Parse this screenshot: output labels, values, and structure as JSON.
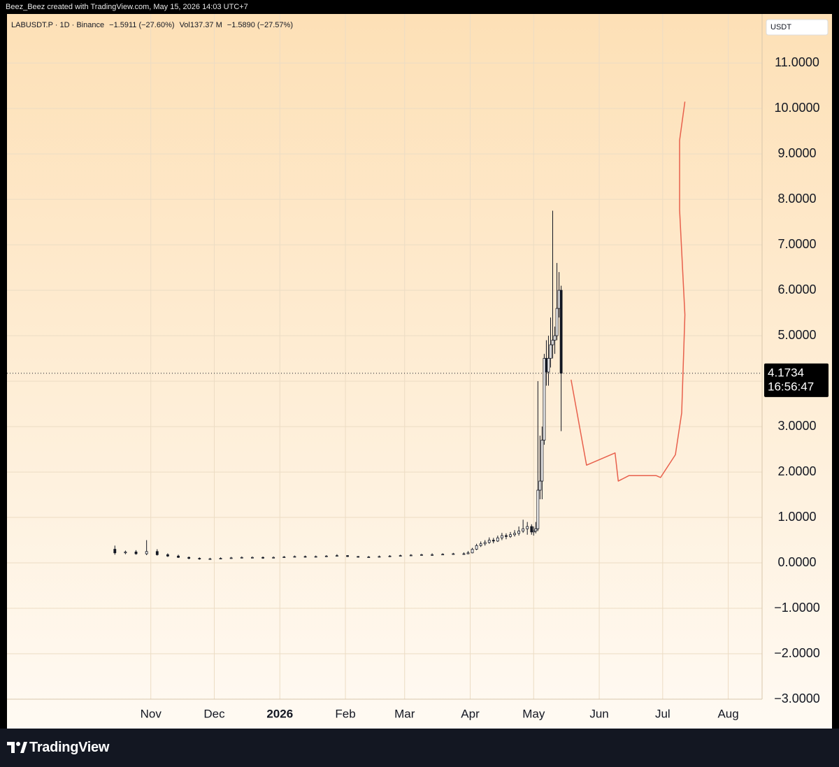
{
  "attribution": "Beez_Beez created with TradingView.com, May 15, 2026 14:03 UTC+7",
  "brand": "TradingView",
  "chart_data": {
    "type": "candlestick",
    "symbol": "LABUSDT.P · 1D · Binance",
    "change": "−1.5911 (−27.60%)",
    "volume": "Vol137.37 M",
    "volume_change": "−1.5890 (−27.57%)",
    "currency": "USDT",
    "grid": true,
    "color": "#131722",
    "xlim": [
      -68,
      289
    ],
    "xticks": [
      {
        "value": 0,
        "label": "Nov"
      },
      {
        "value": 30,
        "label": "Dec"
      },
      {
        "value": 61,
        "label": "2026",
        "bold": true
      },
      {
        "value": 92,
        "label": "Feb"
      },
      {
        "value": 120,
        "label": "Mar"
      },
      {
        "value": 151,
        "label": "Apr"
      },
      {
        "value": 181,
        "label": "May"
      },
      {
        "value": 212,
        "label": "Jun"
      },
      {
        "value": 242,
        "label": "Jul"
      },
      {
        "value": 273,
        "label": "Aug"
      }
    ],
    "ylim": [
      -3,
      12.08
    ],
    "yticks": [
      {
        "value": -3,
        "label": "−3.0000"
      },
      {
        "value": -2,
        "label": "−2.0000"
      },
      {
        "value": -1,
        "label": "−1.0000"
      },
      {
        "value": 0,
        "label": "0.0000"
      },
      {
        "value": 1,
        "label": "1.0000"
      },
      {
        "value": 2,
        "label": "2.0000"
      },
      {
        "value": 3,
        "label": "3.0000"
      },
      {
        "value": 4,
        "label": "4.0000"
      },
      {
        "value": 5,
        "label": "5.0000"
      },
      {
        "value": 6,
        "label": "6.0000"
      },
      {
        "value": 7,
        "label": "7.0000"
      },
      {
        "value": 8,
        "label": "8.0000"
      },
      {
        "value": 9,
        "label": "9.0000"
      },
      {
        "value": 10,
        "label": "10.0000"
      },
      {
        "value": 11,
        "label": "11.0000"
      }
    ],
    "last_price": {
      "value": 4.1734,
      "label": "4.1734"
    },
    "countdown": "16:56:47",
    "candles": [
      {
        "x": -17,
        "open": 0.3,
        "high": 0.38,
        "low": 0.18,
        "close": 0.22
      },
      {
        "x": -12,
        "open": 0.22,
        "high": 0.27,
        "low": 0.19,
        "close": 0.24
      },
      {
        "x": -7,
        "open": 0.24,
        "high": 0.28,
        "low": 0.18,
        "close": 0.2
      },
      {
        "x": -2,
        "open": 0.2,
        "high": 0.5,
        "low": 0.17,
        "close": 0.25
      },
      {
        "x": 3,
        "open": 0.25,
        "high": 0.3,
        "low": 0.16,
        "close": 0.18
      },
      {
        "x": 8,
        "open": 0.18,
        "high": 0.21,
        "low": 0.13,
        "close": 0.15
      },
      {
        "x": 13,
        "open": 0.15,
        "high": 0.18,
        "low": 0.11,
        "close": 0.12
      },
      {
        "x": 18,
        "open": 0.12,
        "high": 0.14,
        "low": 0.08,
        "close": 0.1
      },
      {
        "x": 23,
        "open": 0.1,
        "high": 0.12,
        "low": 0.07,
        "close": 0.09
      },
      {
        "x": 28,
        "open": 0.09,
        "high": 0.11,
        "low": 0.07,
        "close": 0.09
      },
      {
        "x": 33,
        "open": 0.09,
        "high": 0.12,
        "low": 0.08,
        "close": 0.1
      },
      {
        "x": 38,
        "open": 0.1,
        "high": 0.13,
        "low": 0.09,
        "close": 0.11
      },
      {
        "x": 43,
        "open": 0.11,
        "high": 0.14,
        "low": 0.1,
        "close": 0.12
      },
      {
        "x": 48,
        "open": 0.12,
        "high": 0.14,
        "low": 0.1,
        "close": 0.12
      },
      {
        "x": 53,
        "open": 0.12,
        "high": 0.14,
        "low": 0.09,
        "close": 0.11
      },
      {
        "x": 58,
        "open": 0.11,
        "high": 0.14,
        "low": 0.1,
        "close": 0.12
      },
      {
        "x": 63,
        "open": 0.12,
        "high": 0.15,
        "low": 0.11,
        "close": 0.13
      },
      {
        "x": 68,
        "open": 0.13,
        "high": 0.16,
        "low": 0.12,
        "close": 0.14
      },
      {
        "x": 73,
        "open": 0.14,
        "high": 0.16,
        "low": 0.12,
        "close": 0.13
      },
      {
        "x": 78,
        "open": 0.13,
        "high": 0.16,
        "low": 0.12,
        "close": 0.14
      },
      {
        "x": 83,
        "open": 0.14,
        "high": 0.17,
        "low": 0.13,
        "close": 0.15
      },
      {
        "x": 88,
        "open": 0.15,
        "high": 0.19,
        "low": 0.14,
        "close": 0.16
      },
      {
        "x": 93,
        "open": 0.16,
        "high": 0.17,
        "low": 0.13,
        "close": 0.14
      },
      {
        "x": 98,
        "open": 0.14,
        "high": 0.15,
        "low": 0.12,
        "close": 0.13
      },
      {
        "x": 103,
        "open": 0.13,
        "high": 0.15,
        "low": 0.12,
        "close": 0.13
      },
      {
        "x": 108,
        "open": 0.13,
        "high": 0.16,
        "low": 0.12,
        "close": 0.14
      },
      {
        "x": 113,
        "open": 0.14,
        "high": 0.17,
        "low": 0.13,
        "close": 0.15
      },
      {
        "x": 118,
        "open": 0.15,
        "high": 0.18,
        "low": 0.14,
        "close": 0.16
      },
      {
        "x": 123,
        "open": 0.16,
        "high": 0.19,
        "low": 0.15,
        "close": 0.17
      },
      {
        "x": 128,
        "open": 0.17,
        "high": 0.2,
        "low": 0.16,
        "close": 0.18
      },
      {
        "x": 133,
        "open": 0.18,
        "high": 0.21,
        "low": 0.16,
        "close": 0.18
      },
      {
        "x": 138,
        "open": 0.18,
        "high": 0.21,
        "low": 0.17,
        "close": 0.19
      },
      {
        "x": 143,
        "open": 0.19,
        "high": 0.22,
        "low": 0.18,
        "close": 0.2
      },
      {
        "x": 148,
        "open": 0.2,
        "high": 0.23,
        "low": 0.18,
        "close": 0.2
      },
      {
        "x": 150,
        "open": 0.2,
        "high": 0.26,
        "low": 0.19,
        "close": 0.22
      },
      {
        "x": 152,
        "open": 0.22,
        "high": 0.33,
        "low": 0.21,
        "close": 0.3
      },
      {
        "x": 154,
        "open": 0.3,
        "high": 0.42,
        "low": 0.28,
        "close": 0.38
      },
      {
        "x": 156,
        "open": 0.38,
        "high": 0.47,
        "low": 0.35,
        "close": 0.42
      },
      {
        "x": 158,
        "open": 0.42,
        "high": 0.5,
        "low": 0.38,
        "close": 0.45
      },
      {
        "x": 160,
        "open": 0.45,
        "high": 0.56,
        "low": 0.42,
        "close": 0.5
      },
      {
        "x": 162,
        "open": 0.5,
        "high": 0.55,
        "low": 0.43,
        "close": 0.48
      },
      {
        "x": 164,
        "open": 0.48,
        "high": 0.6,
        "low": 0.46,
        "close": 0.55
      },
      {
        "x": 166,
        "open": 0.55,
        "high": 0.66,
        "low": 0.5,
        "close": 0.6
      },
      {
        "x": 168,
        "open": 0.6,
        "high": 0.65,
        "low": 0.52,
        "close": 0.58
      },
      {
        "x": 170,
        "open": 0.58,
        "high": 0.68,
        "low": 0.55,
        "close": 0.62
      },
      {
        "x": 172,
        "open": 0.62,
        "high": 0.72,
        "low": 0.58,
        "close": 0.65
      },
      {
        "x": 174,
        "open": 0.65,
        "high": 0.8,
        "low": 0.6,
        "close": 0.7
      },
      {
        "x": 176,
        "open": 0.7,
        "high": 0.95,
        "low": 0.66,
        "close": 0.75
      },
      {
        "x": 178,
        "open": 0.75,
        "high": 0.9,
        "low": 0.62,
        "close": 0.8
      },
      {
        "x": 180,
        "open": 0.8,
        "high": 0.85,
        "low": 0.62,
        "close": 0.68
      },
      {
        "x": 181,
        "open": 0.68,
        "high": 0.8,
        "low": 0.6,
        "close": 0.7
      },
      {
        "x": 182,
        "open": 0.7,
        "high": 0.9,
        "low": 0.65,
        "close": 0.75
      },
      {
        "x": 183,
        "open": 0.75,
        "high": 4.0,
        "low": 0.7,
        "close": 1.6
      },
      {
        "x": 184,
        "open": 1.6,
        "high": 2.8,
        "low": 1.4,
        "close": 1.8
      },
      {
        "x": 185,
        "open": 1.8,
        "high": 3.0,
        "low": 1.4,
        "close": 2.7
      },
      {
        "x": 186,
        "open": 2.7,
        "high": 4.6,
        "low": 2.6,
        "close": 4.5
      },
      {
        "x": 187,
        "open": 4.5,
        "high": 4.9,
        "low": 3.9,
        "close": 4.2
      },
      {
        "x": 188,
        "open": 4.2,
        "high": 5.0,
        "low": 3.9,
        "close": 4.5
      },
      {
        "x": 189,
        "open": 4.5,
        "high": 5.4,
        "low": 4.3,
        "close": 4.8
      },
      {
        "x": 190,
        "open": 4.8,
        "high": 7.75,
        "low": 4.5,
        "close": 4.9
      },
      {
        "x": 191,
        "open": 4.9,
        "high": 5.2,
        "low": 4.6,
        "close": 5.0
      },
      {
        "x": 192,
        "open": 5.0,
        "high": 6.6,
        "low": 4.9,
        "close": 5.6
      },
      {
        "x": 193,
        "open": 5.6,
        "high": 6.4,
        "low": 5.4,
        "close": 6.0
      },
      {
        "x": 194,
        "open": 6.0,
        "high": 6.1,
        "low": 2.9,
        "close": 4.1734
      }
    ],
    "drawing": {
      "color": "#e8604c",
      "x": [
        198.7,
        206,
        219.5,
        221,
        226,
        239,
        241,
        248,
        251,
        252.5,
        250,
        250,
        252.5
      ],
      "y": [
        4.03,
        2.15,
        2.42,
        1.8,
        1.92,
        1.92,
        1.88,
        2.38,
        3.3,
        5.46,
        7.77,
        9.3,
        10.15
      ]
    }
  }
}
